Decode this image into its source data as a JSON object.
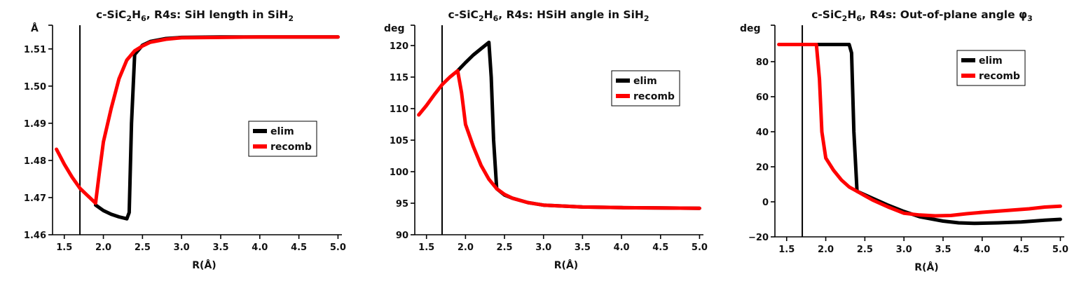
{
  "chart_data": [
    {
      "type": "line",
      "title": "c-SiC",
      "title_sub1": "2",
      "title_mid": "H",
      "title_sub2": "6",
      "title_rest": ", R4s: SiH length in SiH",
      "title_sub3": "2",
      "title_end": "",
      "unit_label": "Å",
      "xlabel": "R(Å)",
      "xlim": [
        1.35,
        5.05
      ],
      "ylim": [
        1.46,
        1.516
      ],
      "xticks": [
        "1.5",
        "2.0",
        "2.5",
        "3.0",
        "3.5",
        "4.0",
        "4.5",
        "5.0"
      ],
      "yticks": [
        "1.46",
        "1.47",
        "1.48",
        "1.49",
        "1.50",
        "1.51"
      ],
      "vline_x": 1.7,
      "legend": [
        "elim",
        "recomb"
      ],
      "legend_position": "center-right",
      "series": [
        {
          "name": "elim",
          "color": "#000000",
          "x": [
            1.9,
            2.0,
            2.1,
            2.2,
            2.3,
            2.33,
            2.36,
            2.4,
            2.5,
            2.6,
            2.8,
            3.0,
            3.5,
            4.0,
            4.5,
            5.0
          ],
          "y": [
            1.468,
            1.4665,
            1.4655,
            1.4648,
            1.4643,
            1.466,
            1.49,
            1.5085,
            1.511,
            1.512,
            1.5128,
            1.5131,
            1.5132,
            1.5132,
            1.5132,
            1.5132
          ]
        },
        {
          "name": "recomb",
          "color": "#ff0000",
          "x": [
            1.4,
            1.5,
            1.6,
            1.7,
            1.8,
            1.9,
            1.95,
            2.0,
            2.1,
            2.2,
            2.3,
            2.4,
            2.5,
            2.6,
            2.8,
            3.0,
            3.5,
            4.0,
            4.5,
            5.0
          ],
          "y": [
            1.483,
            1.479,
            1.4755,
            1.4725,
            1.4705,
            1.4685,
            1.477,
            1.485,
            1.494,
            1.502,
            1.507,
            1.5095,
            1.5108,
            1.5118,
            1.5126,
            1.513,
            1.5131,
            1.5132,
            1.5132,
            1.5132
          ]
        }
      ]
    },
    {
      "type": "line",
      "title": "c-SiC",
      "title_sub1": "2",
      "title_mid": "H",
      "title_sub2": "6",
      "title_rest": ", R4s: HSiH angle in SiH",
      "title_sub3": "2",
      "title_end": "",
      "unit_label": "deg",
      "xlabel": "R(Å)",
      "xlim": [
        1.35,
        5.05
      ],
      "ylim": [
        90,
        123
      ],
      "xticks": [
        "1.5",
        "2.0",
        "2.5",
        "3.0",
        "3.5",
        "4.0",
        "4.5",
        "5.0"
      ],
      "yticks": [
        "90",
        "95",
        "100",
        "105",
        "110",
        "115",
        "120"
      ],
      "vline_x": 1.7,
      "legend": [
        "elim",
        "recomb"
      ],
      "legend_position": "upper-right",
      "series": [
        {
          "name": "elim",
          "color": "#000000",
          "x": [
            1.9,
            2.0,
            2.1,
            2.2,
            2.3,
            2.33,
            2.36,
            2.4,
            2.5,
            2.6,
            2.8,
            3.0,
            3.5,
            4.0,
            4.5,
            5.0
          ],
          "y": [
            116,
            117.3,
            118.5,
            119.5,
            120.5,
            115,
            105,
            97.3,
            96.3,
            95.8,
            95.1,
            94.7,
            94.4,
            94.3,
            94.25,
            94.2
          ]
        },
        {
          "name": "recomb",
          "color": "#ff0000",
          "x": [
            1.4,
            1.5,
            1.6,
            1.7,
            1.8,
            1.9,
            1.95,
            2.0,
            2.1,
            2.2,
            2.3,
            2.4,
            2.5,
            2.6,
            2.8,
            3.0,
            3.5,
            4.0,
            4.5,
            5.0
          ],
          "y": [
            109,
            110.5,
            112.2,
            113.8,
            115,
            116,
            112.5,
            107.5,
            104,
            101,
            98.8,
            97.3,
            96.4,
            95.8,
            95.1,
            94.7,
            94.4,
            94.3,
            94.25,
            94.2
          ]
        }
      ]
    },
    {
      "type": "line",
      "title": "c-SiC",
      "title_sub1": "2",
      "title_mid": "H",
      "title_sub2": "6",
      "title_rest": ", R4s: Out-of-plane angle φ",
      "title_sub3": "3",
      "title_end": "",
      "unit_label": "deg",
      "xlabel": "R(Å)",
      "xlim": [
        1.35,
        5.05
      ],
      "ylim": [
        -20,
        100
      ],
      "xticks": [
        "1.5",
        "2.0",
        "2.5",
        "3.0",
        "3.5",
        "4.0",
        "4.5",
        "5.0"
      ],
      "yticks": [
        "−20",
        "0",
        "20",
        "40",
        "60",
        "80"
      ],
      "vline_x": 1.7,
      "legend": [
        "elim",
        "recomb"
      ],
      "legend_position": "upper-right",
      "series": [
        {
          "name": "elim",
          "color": "#000000",
          "x": [
            1.9,
            2.0,
            2.1,
            2.2,
            2.3,
            2.33,
            2.36,
            2.4,
            2.5,
            2.6,
            2.8,
            3.0,
            3.2,
            3.5,
            3.7,
            3.9,
            4.2,
            4.5,
            4.8,
            5.0
          ],
          "y": [
            89.8,
            89.8,
            89.8,
            89.8,
            89.8,
            85,
            40,
            6,
            4,
            2,
            -2,
            -5.5,
            -8.5,
            -11,
            -12,
            -12.3,
            -12,
            -11.5,
            -10.5,
            -10
          ]
        },
        {
          "name": "recomb",
          "color": "#ff0000",
          "x": [
            1.4,
            1.5,
            1.6,
            1.7,
            1.8,
            1.88,
            1.92,
            1.95,
            2.0,
            2.1,
            2.2,
            2.3,
            2.4,
            2.5,
            2.6,
            2.8,
            3.0,
            3.2,
            3.4,
            3.6,
            3.8,
            4.0,
            4.3,
            4.6,
            4.8,
            5.0
          ],
          "y": [
            89.8,
            89.8,
            89.8,
            89.8,
            89.8,
            89.8,
            70,
            40,
            25,
            18,
            12.5,
            8.5,
            6,
            3.5,
            1,
            -3,
            -6.5,
            -7.5,
            -8,
            -7.8,
            -6.8,
            -6,
            -5,
            -4,
            -3,
            -2.5
          ]
        }
      ]
    }
  ]
}
